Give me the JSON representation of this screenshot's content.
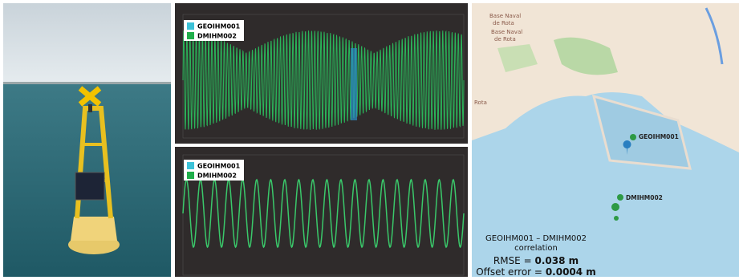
{
  "charts": [
    {
      "legend": [
        "GEOIHM001",
        "DMIHM002"
      ]
    },
    {
      "legend": [
        "GEOIHM001",
        "DMIHM002"
      ]
    }
  ],
  "map": {
    "places": [
      "Base Naval",
      "de Rota",
      "Base Naval",
      "de Rota",
      "Rota"
    ],
    "stations": [
      "GEOIHM001",
      "DMIHM002"
    ],
    "correlation": {
      "title": "GEOIHM001 – DMIHM002",
      "subtitle": "correlation",
      "rmse_label": "RMSE =",
      "rmse_value": "0.038 m",
      "offset_label": "Offset error =",
      "offset_value": "0.0004 m"
    }
  }
}
